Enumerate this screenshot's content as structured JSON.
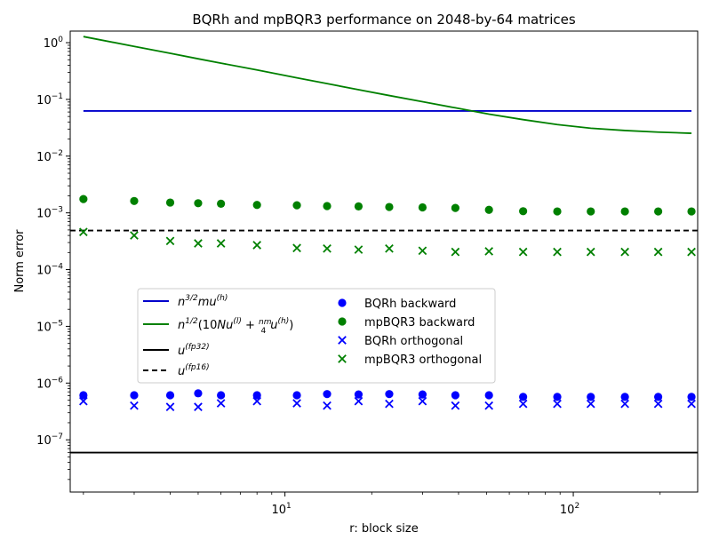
{
  "chart_data": {
    "type": "scatter",
    "title": "BQRh and mpBQR3 performance on 2048-by-64 matrices",
    "xlabel": "r: block size",
    "ylabel": "Norm error",
    "xscale": "log",
    "yscale": "log",
    "xlim": [
      1.8,
      270
    ],
    "ylim": [
      1.2e-08,
      1.6
    ],
    "legend_position": "center-left",
    "x_ticks": [
      {
        "value": 10,
        "base": "10",
        "exp": "1"
      },
      {
        "value": 100,
        "base": "10",
        "exp": "2"
      }
    ],
    "y_ticks": [
      {
        "value": 1e-07,
        "base": "10",
        "exp": "−7"
      },
      {
        "value": 1e-06,
        "base": "10",
        "exp": "−6"
      },
      {
        "value": 1e-05,
        "base": "10",
        "exp": "−5"
      },
      {
        "value": 0.0001,
        "base": "10",
        "exp": "−4"
      },
      {
        "value": 0.001,
        "base": "10",
        "exp": "−3"
      },
      {
        "value": 0.01,
        "base": "10",
        "exp": "−2"
      },
      {
        "value": 0.1,
        "base": "10",
        "exp": "−1"
      },
      {
        "value": 1,
        "base": "10",
        "exp": "0"
      }
    ],
    "x": [
      2,
      3,
      4,
      5,
      6,
      8,
      11,
      14,
      18,
      23,
      30,
      39,
      51,
      67,
      88,
      115,
      151,
      197,
      257
    ],
    "lines": [
      {
        "name": "n^(3/2) m u^(h)",
        "color": "#0000cc",
        "dash": "solid",
        "x": [
          2,
          257
        ],
        "y": [
          0.0625,
          0.0625
        ]
      },
      {
        "name": "n^(1/2) (10 N u^(l) + nm/4 u^(h))",
        "color": "#008000",
        "dash": "solid",
        "x": [
          2,
          3,
          4,
          5,
          6,
          8,
          11,
          14,
          18,
          23,
          30,
          39,
          51,
          67,
          88,
          115,
          151,
          197,
          257
        ],
        "y": [
          1.28,
          0.86,
          0.65,
          0.52,
          0.435,
          0.33,
          0.24,
          0.19,
          0.148,
          0.117,
          0.091,
          0.071,
          0.055,
          0.044,
          0.036,
          0.031,
          0.0283,
          0.0265,
          0.0253
        ]
      },
      {
        "name": "u^(fp32)",
        "color": "#000000",
        "dash": "solid",
        "x": [
          1.8,
          270
        ],
        "y": [
          5.96e-08,
          5.96e-08
        ]
      },
      {
        "name": "u^(fp16)",
        "color": "#000000",
        "dash": "dashed",
        "x": [
          1.8,
          270
        ],
        "y": [
          0.000488,
          0.000488
        ]
      }
    ],
    "series": [
      {
        "name": "BQRh backward",
        "color": "#0000ff",
        "marker": "circle",
        "values": [
          6.1e-07,
          6.1e-07,
          6.1e-07,
          6.6e-07,
          6.1e-07,
          6.1e-07,
          6.1e-07,
          6.4e-07,
          6.3e-07,
          6.4e-07,
          6.3e-07,
          6.1e-07,
          6.1e-07,
          5.7e-07,
          5.7e-07,
          5.7e-07,
          5.7e-07,
          5.7e-07,
          5.7e-07
        ]
      },
      {
        "name": "mpBQR3 backward",
        "color": "#008000",
        "marker": "circle",
        "values": [
          0.00175,
          0.00162,
          0.00152,
          0.00148,
          0.00145,
          0.00138,
          0.00136,
          0.00132,
          0.0013,
          0.00127,
          0.00125,
          0.00122,
          0.00113,
          0.00107,
          0.00106,
          0.00106,
          0.00106,
          0.00106,
          0.00106
        ]
      },
      {
        "name": "BQRh orthogonal",
        "color": "#0000ff",
        "marker": "x",
        "values": [
          4.8e-07,
          4e-07,
          3.8e-07,
          3.8e-07,
          4.4e-07,
          4.8e-07,
          4.4e-07,
          4e-07,
          4.8e-07,
          4.3e-07,
          4.8e-07,
          4e-07,
          4e-07,
          4.3e-07,
          4.3e-07,
          4.3e-07,
          4.3e-07,
          4.3e-07,
          4.3e-07
        ]
      },
      {
        "name": "mpBQR3 orthogonal",
        "color": "#008000",
        "marker": "x",
        "values": [
          0.00046,
          0.0004,
          0.00032,
          0.00029,
          0.00029,
          0.00027,
          0.00024,
          0.000235,
          0.000225,
          0.000235,
          0.000215,
          0.000205,
          0.00021,
          0.000205,
          0.000205,
          0.000205,
          0.000205,
          0.000205,
          0.000205
        ]
      }
    ]
  }
}
